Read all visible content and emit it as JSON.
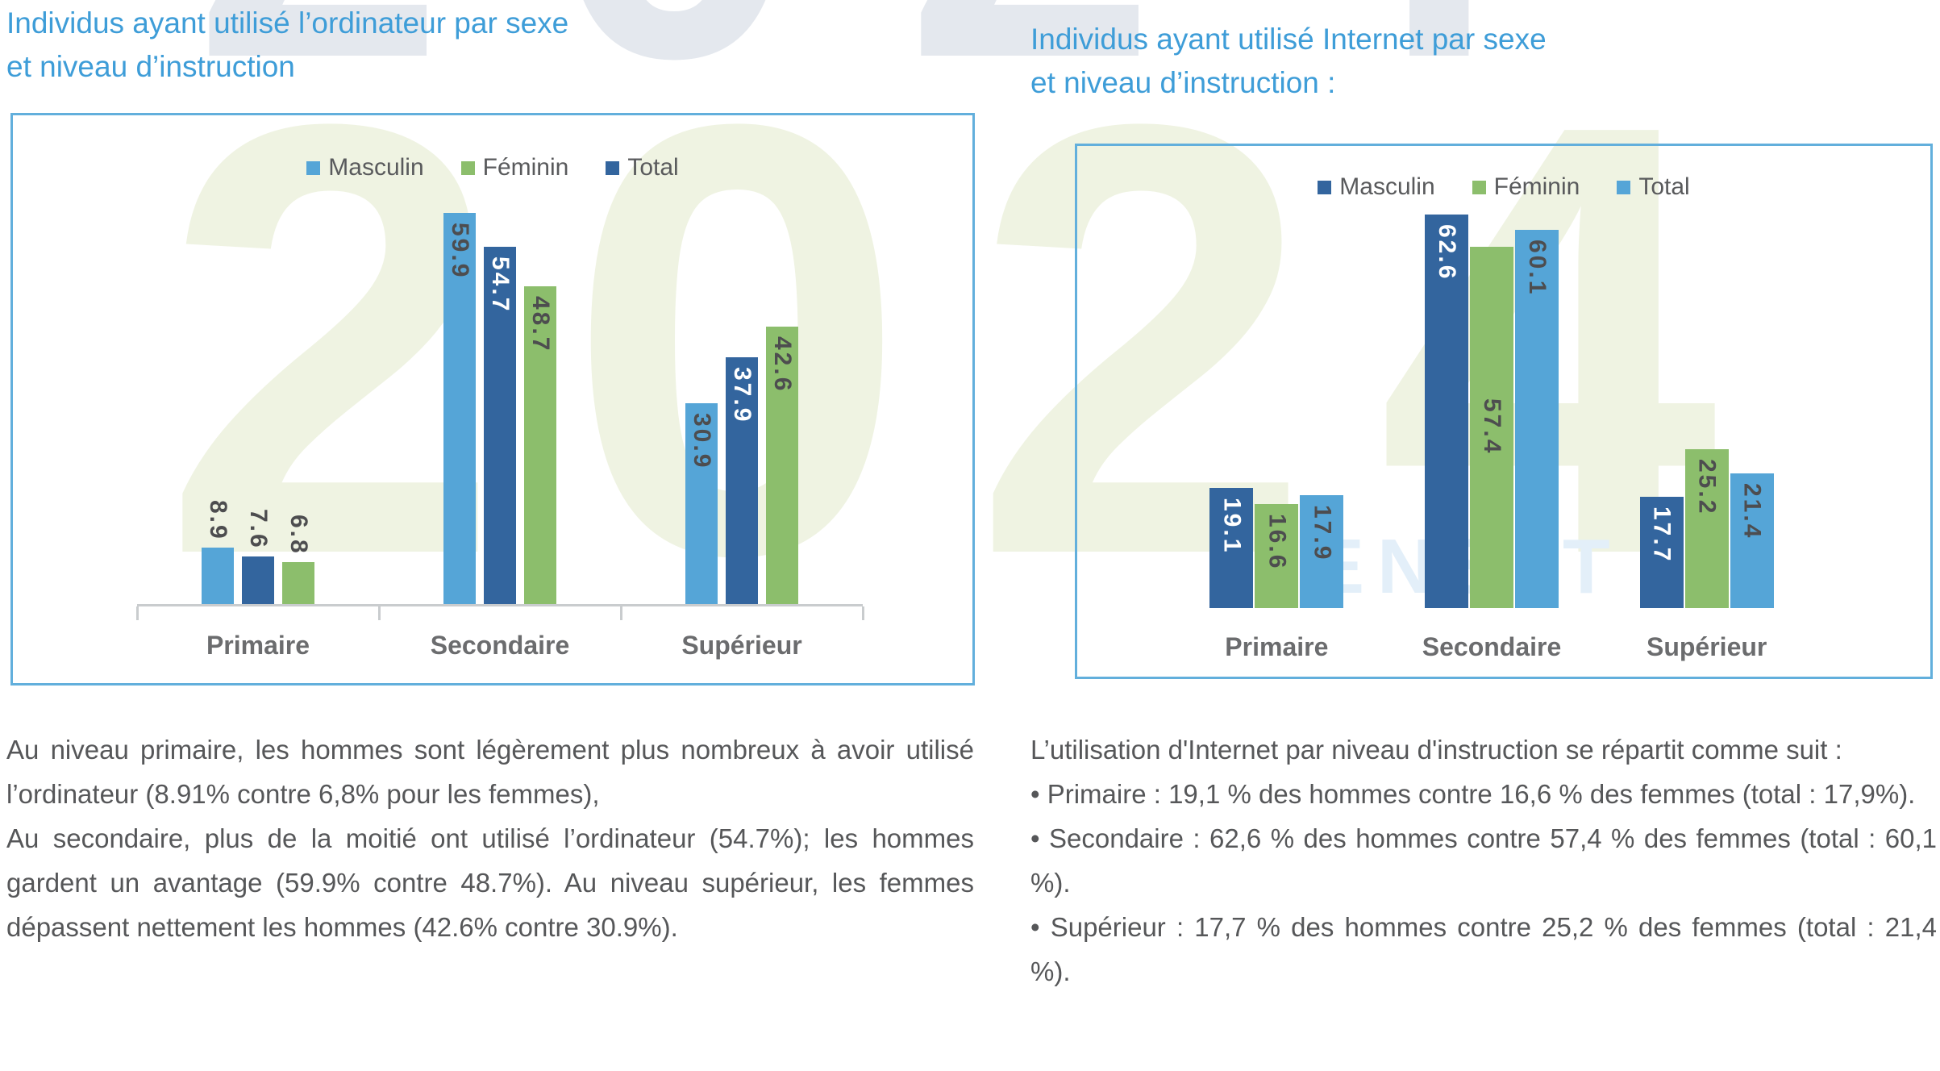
{
  "watermark": {
    "top_year": "2024",
    "middle_year": "2024",
    "fragment_1": "ENS",
    "fragment_2": "T"
  },
  "colors": {
    "title_blue": "#3E9DD8",
    "bar_light_blue": "#55A5D7",
    "bar_dark_blue": "#33659E",
    "bar_green": "#8CBE6C",
    "box_border_blue": "#62AFDC",
    "axis_gray": "#C9CCCE",
    "body_text_gray": "#565759",
    "label_dark_gray": "#4D4D4F",
    "label_white": "#FFFFFF",
    "watermark_green": "#EFF3E2",
    "watermark_gray": "#E4E8EE",
    "watermark_blue": "#E3EFF9"
  },
  "chart_data": [
    {
      "type": "bar",
      "title_lines": [
        "Individus ayant utilisé l’ordinateur par sexe",
        "et niveau d’instruction"
      ],
      "categories": [
        "Primaire",
        "Secondaire",
        "Supérieur"
      ],
      "legend": [
        {
          "label": "Masculin",
          "color": "#55A5D7"
        },
        {
          "label": "Féminin",
          "color": "#8CBE6C"
        },
        {
          "label": "Total",
          "color": "#33659E"
        }
      ],
      "series": [
        {
          "name": "Masculin",
          "color": "#55A5D7",
          "label_color": "#4D4D4F",
          "values": [
            8.9,
            59.9,
            30.9
          ]
        },
        {
          "name": "Total",
          "color": "#33659E",
          "label_color": "#FFFFFF",
          "values": [
            7.6,
            54.7,
            37.9
          ]
        },
        {
          "name": "Féminin",
          "color": "#8CBE6C",
          "label_color": "#4D4D4F",
          "values": [
            6.8,
            48.7,
            42.6
          ]
        }
      ],
      "label_above_threshold": 10,
      "label_overrides": {},
      "axis_bracket": true,
      "ylim": [
        0,
        66
      ],
      "legend_position": "top",
      "grid": false
    },
    {
      "type": "bar",
      "title_lines": [
        "Individus ayant utilisé Internet par sexe",
        "et niveau d’instruction :"
      ],
      "categories": [
        "Primaire",
        "Secondaire",
        "Supérieur"
      ],
      "legend": [
        {
          "label": "Masculin",
          "color": "#33659E"
        },
        {
          "label": "Féminin",
          "color": "#8CBE6C"
        },
        {
          "label": "Total",
          "color": "#55A5D7"
        }
      ],
      "series": [
        {
          "name": "Masculin",
          "color": "#33659E",
          "label_color": "#FFFFFF",
          "values": [
            19.1,
            62.6,
            17.7
          ]
        },
        {
          "name": "Féminin",
          "color": "#8CBE6C",
          "label_color": "#4D4D4F",
          "values": [
            16.6,
            57.4,
            25.2
          ]
        },
        {
          "name": "Total",
          "color": "#55A5D7",
          "label_color": "#4D4D4F",
          "values": [
            17.9,
            60.1,
            21.4
          ]
        }
      ],
      "label_above_threshold": 0,
      "label_overrides": {
        "1": {
          "1": "mid"
        }
      },
      "axis_bracket": false,
      "ylim": [
        0,
        68
      ],
      "legend_position": "top",
      "grid": false
    }
  ],
  "texts": {
    "left_paragraphs": [
      "Au niveau primaire, les hommes sont légèrement plus nombreux à avoir utilisé l’ordinateur (8.91% contre 6,8% pour les femmes),",
      "Au secondaire, plus de la moitié ont utilisé l’ordinateur (54.7%); les hommes gardent un avantage (59.9% contre 48.7%). Au niveau supérieur, les femmes dépassent nettement les hommes (42.6% contre 30.9%)."
    ],
    "right_intro": "L’utilisation d'Internet par niveau d'instruction se répartit comme suit :",
    "right_bullets": [
      "• Primaire : 19,1 % des hommes contre 16,6 % des femmes (total : 17,9%).",
      "• Secondaire : 62,6 % des hommes contre 57,4 % des femmes (total : 60,1 %).",
      "• Supérieur : 17,7 % des hommes contre 25,2 % des femmes (total : 21,4 %)."
    ]
  }
}
